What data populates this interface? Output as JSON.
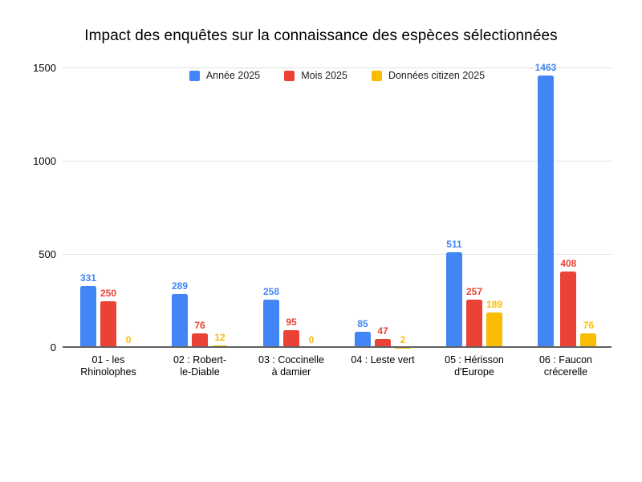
{
  "chart_data": {
    "type": "bar",
    "title": "Impact des enquêtes sur la connaissance des espèces sélectionnées",
    "categories": [
      "01 - les Rhinolophes",
      "02 : Robert-le-Diable",
      "03 : Coccinelle à damier",
      "04 : Leste vert",
      "05 : Hérisson d'Europe",
      "06 : Faucon crécerelle"
    ],
    "category_lines": [
      [
        "01 - les",
        "Rhinolophes"
      ],
      [
        "02 : Robert-",
        "le-Diable"
      ],
      [
        "03 : Coccinelle",
        "à damier"
      ],
      [
        "04 : Leste vert"
      ],
      [
        "05 : Hérisson",
        "d'Europe"
      ],
      [
        "06 : Faucon",
        "crécerelle"
      ]
    ],
    "series": [
      {
        "name": "Année 2025",
        "color": "#4285F4",
        "values": [
          331,
          289,
          258,
          85,
          511,
          1463
        ]
      },
      {
        "name": "Mois 2025",
        "color": "#EA4335",
        "values": [
          250,
          76,
          95,
          47,
          257,
          408
        ]
      },
      {
        "name": "Données citizen 2025",
        "color": "#FBBC04",
        "values": [
          0,
          12,
          0,
          2,
          189,
          76
        ]
      }
    ],
    "ylim": [
      0,
      1500
    ],
    "yticks": [
      0,
      500,
      1000,
      1500
    ],
    "grid": true,
    "legend_position": "top",
    "bar_value_labels": true
  },
  "style": {
    "background": "#ffffff",
    "grid_color": "#E0E0E0",
    "axis_color": "#616161",
    "tick_label_color": "#000000",
    "legend_text_color": "#202124"
  }
}
